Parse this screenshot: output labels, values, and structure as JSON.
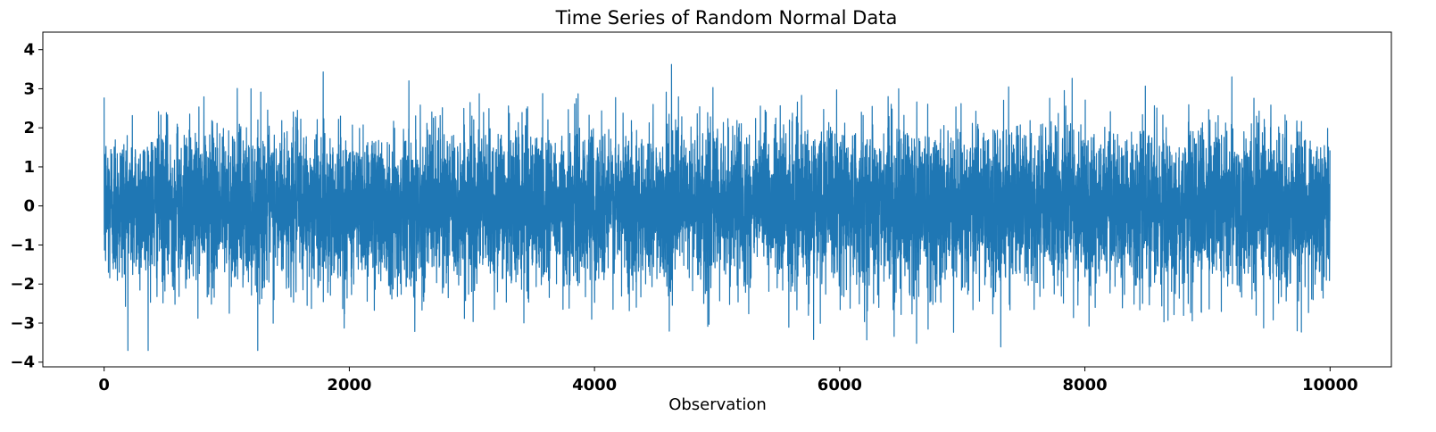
{
  "chart_data": {
    "type": "line",
    "title": "Time Series of Random Normal Data",
    "xlabel": "Observation",
    "ylabel": "",
    "xlim": [
      -500,
      10500
    ],
    "ylim": [
      -4.12,
      4.45
    ],
    "xticks": [
      0,
      2000,
      4000,
      6000,
      8000,
      10000
    ],
    "xtick_labels": [
      "0",
      "2000",
      "4000",
      "6000",
      "8000",
      "10000"
    ],
    "yticks": [
      4,
      3,
      2,
      1,
      0,
      -1,
      -2,
      -3,
      -4
    ],
    "ytick_labels": [
      "4",
      "3",
      "2",
      "1",
      "0",
      "−1",
      "−2",
      "−3",
      "−4"
    ],
    "grid": false,
    "series": [
      {
        "n_points": 10000,
        "x_start": 0,
        "x_end": 9999,
        "distribution": "standard normal (mean 0, sd 1)",
        "color": "#1f77b4",
        "y_min": -3.7,
        "y_max": 4.05
      }
    ]
  }
}
